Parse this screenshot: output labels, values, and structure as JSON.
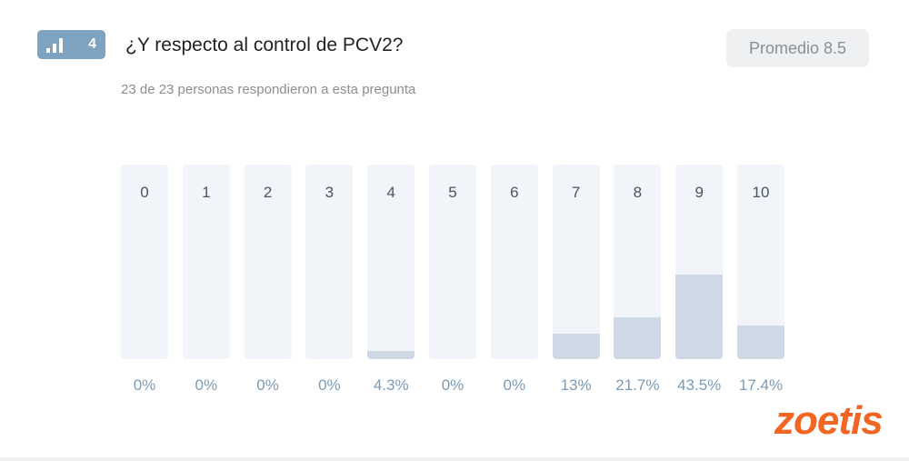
{
  "question": {
    "number": "4",
    "title": "¿Y respecto al control de PCV2?",
    "average_label": "Promedio 8.5",
    "responses_text": "23 de 23 personas respondieron a esta pregunta"
  },
  "scale": [
    {
      "label": "0",
      "percent": 0,
      "percent_label": "0%"
    },
    {
      "label": "1",
      "percent": 0,
      "percent_label": "0%"
    },
    {
      "label": "2",
      "percent": 0,
      "percent_label": "0%"
    },
    {
      "label": "3",
      "percent": 0,
      "percent_label": "0%"
    },
    {
      "label": "4",
      "percent": 4.3,
      "percent_label": "4.3%"
    },
    {
      "label": "5",
      "percent": 0,
      "percent_label": "0%"
    },
    {
      "label": "6",
      "percent": 0,
      "percent_label": "0%"
    },
    {
      "label": "7",
      "percent": 13,
      "percent_label": "13%"
    },
    {
      "label": "8",
      "percent": 21.7,
      "percent_label": "21.7%"
    },
    {
      "label": "9",
      "percent": 43.5,
      "percent_label": "43.5%"
    },
    {
      "label": "10",
      "percent": 17.4,
      "percent_label": "17.4%"
    }
  ],
  "logo_text": "zoetis",
  "colors": {
    "badge": "#7ea3c0",
    "bar_fill": "#cfd9e6",
    "bar_bg": "#f1f4f9",
    "logo": "#f26522"
  }
}
